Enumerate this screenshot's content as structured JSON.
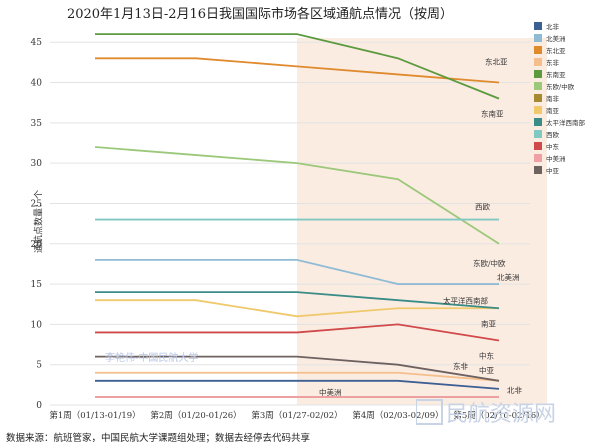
{
  "chart_data": {
    "type": "line",
    "title": "2020年1月13日-2月16日我国国际市场各区域通航点情况（按周）",
    "ylabel": "通航点数量：个",
    "xlabel": "",
    "categories": [
      "第1周（01/13-01/19）",
      "第2周（01/20-01/26）",
      "第3周（01/27-02/02）",
      "第4周（02/03-02/09）",
      "第5周（02/10-02/16）"
    ],
    "ylim": [
      0,
      48
    ],
    "yticks": [
      0,
      5,
      10,
      15,
      20,
      25,
      30,
      35,
      40,
      45
    ],
    "grid": true,
    "highlight_categories": [
      "第3周（01/27-02/02）",
      "第5周（02/10-02/16）"
    ],
    "legend_position": "right",
    "series": [
      {
        "name": "北非",
        "color": "#3c5f94",
        "values": [
          3,
          3,
          3,
          3,
          2
        ],
        "label": "北非"
      },
      {
        "name": "北美洲",
        "color": "#8fbcd4",
        "values": [
          18,
          18,
          18,
          15,
          15
        ],
        "label": "北美洲"
      },
      {
        "name": "东北亚",
        "color": "#e08a2e",
        "values": [
          43,
          43,
          42,
          41,
          40
        ],
        "label": "东北亚"
      },
      {
        "name": "东非",
        "color": "#f4bf8c",
        "values": [
          4,
          4,
          4,
          4,
          3
        ],
        "label": "东非"
      },
      {
        "name": "东南亚",
        "color": "#5b9a3e",
        "values": [
          46,
          46,
          46,
          43,
          38
        ],
        "label": "东南亚"
      },
      {
        "name": "东欧/中欧",
        "color": "#9cc87a",
        "values": [
          32,
          31,
          30,
          28,
          20
        ],
        "label": "东欧/中欧"
      },
      {
        "name": "南非",
        "color": "#a68a2f",
        "values": [
          1,
          1,
          1,
          1,
          1
        ],
        "label": ""
      },
      {
        "name": "南亚",
        "color": "#efc96c",
        "values": [
          13,
          13,
          11,
          12,
          12
        ],
        "label": "南亚"
      },
      {
        "name": "太平洋西南部",
        "color": "#3a8c87",
        "values": [
          14,
          14,
          14,
          13,
          12
        ],
        "label": "太平洋西南部"
      },
      {
        "name": "西欧",
        "color": "#80c9c2",
        "values": [
          23,
          23,
          23,
          23,
          23
        ],
        "label": "西欧"
      },
      {
        "name": "中东",
        "color": "#d0494b",
        "values": [
          9,
          9,
          9,
          10,
          8
        ],
        "label": "中东"
      },
      {
        "name": "中美洲",
        "color": "#f0a0a4",
        "values": [
          1,
          1,
          1,
          1,
          1
        ],
        "label": "中美洲"
      },
      {
        "name": "中亚",
        "color": "#6e6261",
        "values": [
          6,
          6,
          6,
          5,
          3
        ],
        "label": "中亚"
      }
    ]
  },
  "footer": "数据来源：航班管家，中国民航大学课题组处理；数据去经停去代码共享",
  "watermark": "李艳伟-中国民航大学",
  "logo_text": "民航资源网"
}
